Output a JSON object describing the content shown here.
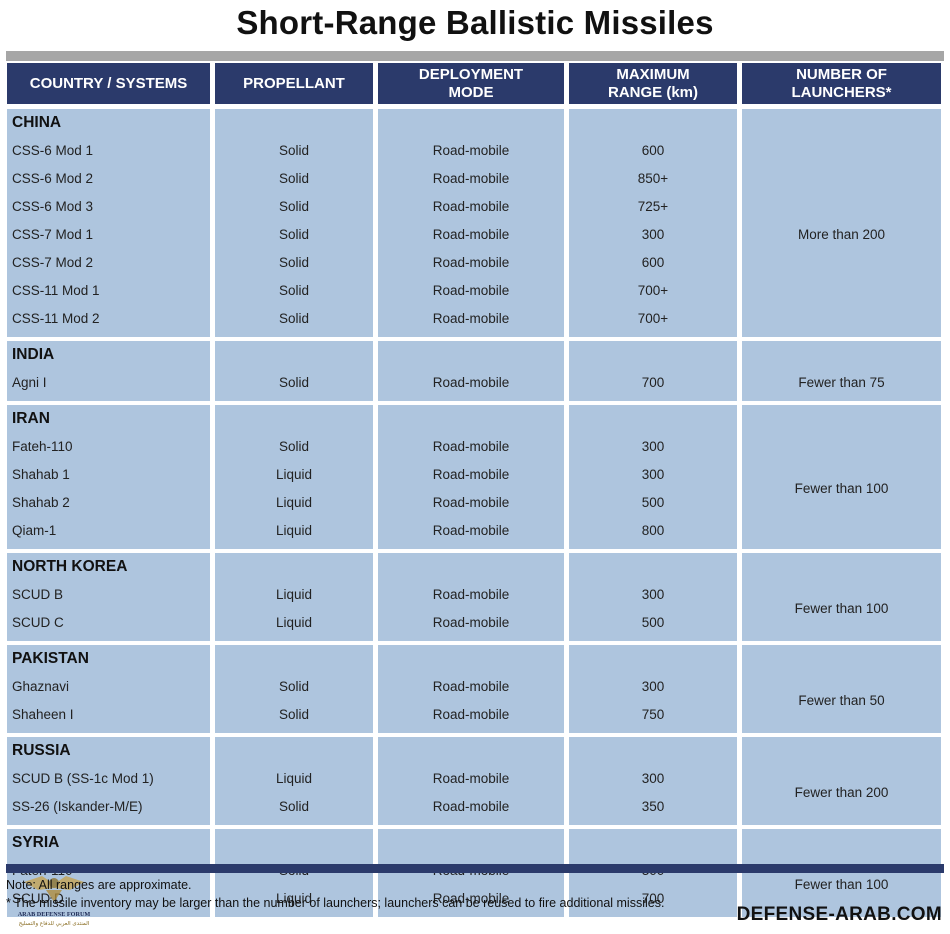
{
  "title": "Short-Range Ballistic Missiles",
  "headers": [
    "COUNTRY / SYSTEMS",
    "PROPELLANT",
    "DEPLOYMENT\nMODE",
    "MAXIMUM\nRANGE (km)",
    "NUMBER OF\nLAUNCHERS*"
  ],
  "groups": [
    {
      "country": "CHINA",
      "launchers": "More than 200",
      "rows": [
        [
          "CSS-6 Mod 1",
          "Solid",
          "Road-mobile",
          "600"
        ],
        [
          "CSS-6 Mod 2",
          "Solid",
          "Road-mobile",
          "850+"
        ],
        [
          "CSS-6 Mod 3",
          "Solid",
          "Road-mobile",
          "725+"
        ],
        [
          "CSS-7 Mod 1",
          "Solid",
          "Road-mobile",
          "300"
        ],
        [
          "CSS-7 Mod 2",
          "Solid",
          "Road-mobile",
          "600"
        ],
        [
          "CSS-11 Mod 1",
          "Solid",
          "Road-mobile",
          "700+"
        ],
        [
          "CSS-11 Mod 2",
          "Solid",
          "Road-mobile",
          "700+"
        ]
      ]
    },
    {
      "country": "INDIA",
      "launchers": "Fewer than 75",
      "rows": [
        [
          "Agni I",
          "Solid",
          "Road-mobile",
          "700"
        ]
      ]
    },
    {
      "country": "IRAN",
      "launchers": "Fewer than 100",
      "rows": [
        [
          "Fateh-110",
          "Solid",
          "Road-mobile",
          "300"
        ],
        [
          "Shahab 1",
          "Liquid",
          "Road-mobile",
          "300"
        ],
        [
          "Shahab 2",
          "Liquid",
          "Road-mobile",
          "500"
        ],
        [
          "Qiam-1",
          "Liquid",
          "Road-mobile",
          "800"
        ]
      ]
    },
    {
      "country": "NORTH KOREA",
      "launchers": "Fewer than 100",
      "rows": [
        [
          "SCUD B",
          "Liquid",
          "Road-mobile",
          "300"
        ],
        [
          "SCUD C",
          "Liquid",
          "Road-mobile",
          "500"
        ]
      ]
    },
    {
      "country": "PAKISTAN",
      "launchers": "Fewer than 50",
      "rows": [
        [
          "Ghaznavi",
          "Solid",
          "Road-mobile",
          "300"
        ],
        [
          "Shaheen I",
          "Solid",
          "Road-mobile",
          "750"
        ]
      ]
    },
    {
      "country": "RUSSIA",
      "launchers": "Fewer than 200",
      "rows": [
        [
          "SCUD B (SS-1c Mod 1)",
          "Liquid",
          "Road-mobile",
          "300"
        ],
        [
          "SS-26 (Iskander-M/E)",
          "Solid",
          "Road-mobile",
          "350"
        ]
      ]
    },
    {
      "country": "SYRIA",
      "launchers": "Fewer than 100",
      "rows": [
        [
          "Fateh-110",
          "Solid",
          "Road-mobile",
          "300"
        ],
        [
          "SCUD D",
          "Liquid",
          "Road-mobile",
          "700"
        ]
      ]
    }
  ],
  "notes": [
    "Note: All ranges are approximate.",
    "* The missile inventory may be larger than the number of launchers; launchers can be reused to fire additional missiles."
  ],
  "brand": "DEFENSE-ARAB.COM",
  "logo_text": [
    "ARAB DEFENSE FORUM",
    "المنتدى العربي للدفاع والتسليح"
  ],
  "colors": {
    "header": "#2b3a6b",
    "cell": "#aec5de",
    "divider": "#a6a6a6"
  }
}
